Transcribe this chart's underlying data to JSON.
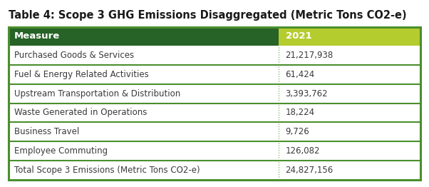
{
  "title": "Table 4: Scope 3 GHG Emissions Disaggregated (Metric Tons CO2-e)",
  "header": [
    "Measure",
    "2021"
  ],
  "rows": [
    [
      "Purchased Goods & Services",
      "21,217,938"
    ],
    [
      "Fuel & Energy Related Activities",
      "61,424"
    ],
    [
      "Upstream Transportation & Distribution",
      "3,393,762"
    ],
    [
      "Waste Generated in Operations",
      "18,224"
    ],
    [
      "Business Travel",
      "9,726"
    ],
    [
      "Employee Commuting",
      "126,082"
    ],
    [
      "Total Scope 3 Emissions (Metric Tons CO2-e)",
      "24,827,156"
    ]
  ],
  "header_bg_col1": "#276227",
  "header_bg_col2": "#b5cc2e",
  "header_text_color": "#ffffff",
  "row_text_color": "#3a3a3a",
  "divider_color": "#4a8f2e",
  "outer_border_color": "#4a8f2e",
  "col_split": 0.655,
  "bg_color": "#ffffff",
  "title_color": "#1a1a1a",
  "title_fontsize": 10.5,
  "row_fontsize": 8.5,
  "header_fontsize": 9.5,
  "dotted_line_color": "#7ab648"
}
